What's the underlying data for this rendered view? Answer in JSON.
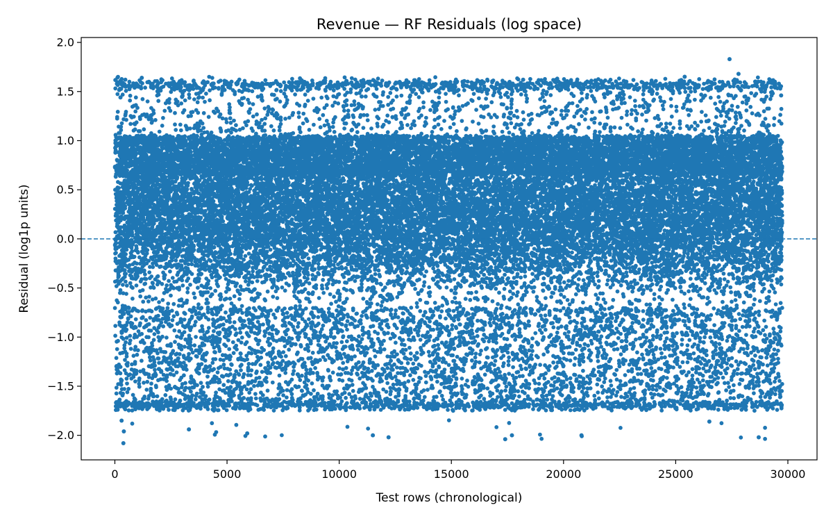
{
  "chart_data": {
    "type": "scatter",
    "title": "Revenue — RF Residuals (log space)",
    "xlabel": "Test rows (chronological)",
    "ylabel": "Residual (log1p units)",
    "xlim": [
      -1500,
      31300
    ],
    "ylim": [
      -2.25,
      2.05
    ],
    "x_ticks": [
      0,
      5000,
      10000,
      15000,
      20000,
      25000,
      30000
    ],
    "x_tick_labels": [
      "0",
      "5000",
      "10000",
      "15000",
      "20000",
      "25000",
      "30000"
    ],
    "y_ticks": [
      -2.0,
      -1.5,
      -1.0,
      -0.5,
      0.0,
      0.5,
      1.0,
      1.5,
      2.0
    ],
    "y_tick_labels": [
      "−2.0",
      "−1.5",
      "−1.0",
      "−0.5",
      "0.0",
      "0.5",
      "1.0",
      "1.5",
      "2.0"
    ],
    "reference_line": {
      "y": 0.0,
      "style": "dashed"
    },
    "grid": false,
    "marker_color": "#1f77b4",
    "point_count": 29750,
    "x_range": [
      0,
      29750
    ],
    "series": [
      {
        "sample_points": [
          [
            380,
            -2.08
          ],
          [
            400,
            -1.96
          ],
          [
            300,
            -1.85
          ],
          [
            3300,
            -1.94
          ],
          [
            5900,
            -1.98
          ],
          [
            12200,
            -2.02
          ],
          [
            11500,
            -2.0
          ],
          [
            17400,
            -2.04
          ],
          [
            17700,
            -2.0
          ],
          [
            20800,
            -2.0
          ],
          [
            28700,
            -2.02
          ],
          [
            26500,
            -1.86
          ],
          [
            27400,
            1.83
          ],
          [
            27800,
            1.68
          ],
          [
            27600,
            1.58
          ],
          [
            25400,
            1.65
          ],
          [
            1200,
            1.64
          ],
          [
            5200,
            1.6
          ],
          [
            18200,
            1.62
          ],
          [
            700,
            1.55
          ],
          [
            250,
            1.44
          ],
          [
            11000,
            1.45
          ],
          [
            15500,
            1.6
          ],
          [
            22800,
            1.6
          ],
          [
            29600,
            1.58
          ],
          [
            29700,
            1.46
          ],
          [
            14200,
            1.35
          ],
          [
            4600,
            1.3
          ],
          [
            9200,
            1.58
          ],
          [
            13000,
            1.6
          ]
        ]
      }
    ]
  }
}
